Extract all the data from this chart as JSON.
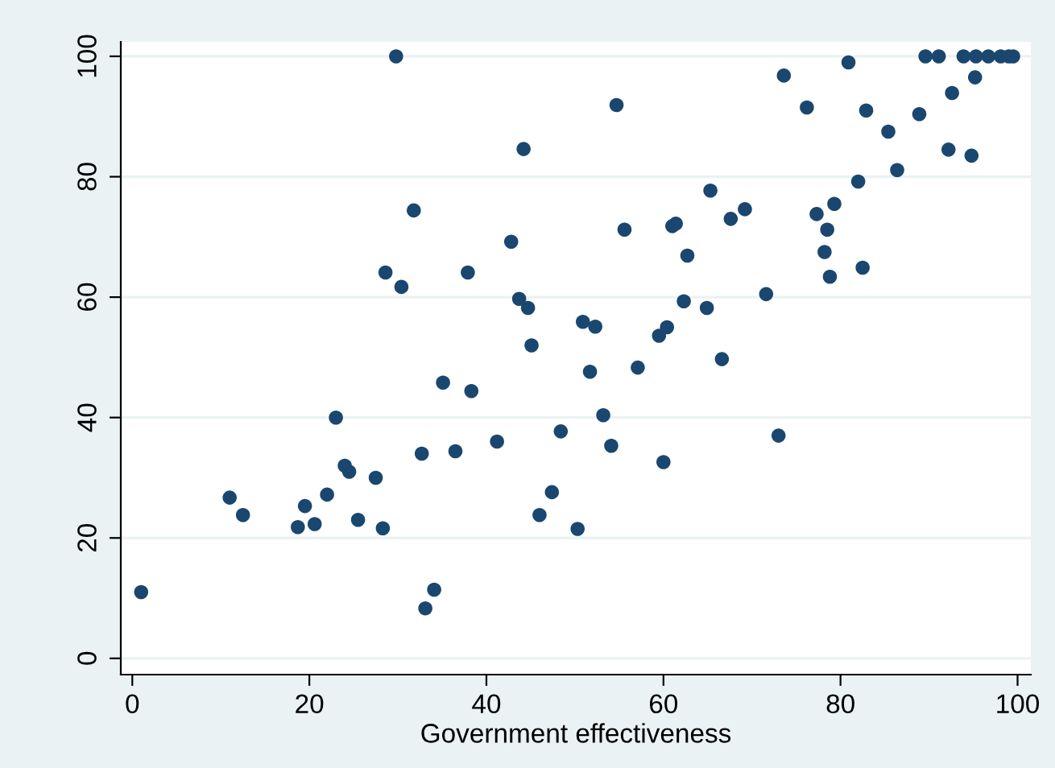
{
  "chart_data": {
    "type": "scatter",
    "xlabel": "Government effectiveness",
    "xlim": [
      -1.3,
      101.5
    ],
    "ylim": [
      -2.7,
      102.4
    ],
    "xticks": [
      0,
      20,
      40,
      60,
      80,
      100
    ],
    "yticks": [
      0,
      20,
      40,
      60,
      80,
      100
    ],
    "grid": "y",
    "marker": "circle",
    "series": [
      {
        "color": "#1a476f",
        "x": [
          1,
          11,
          12.5,
          18.7,
          19.5,
          20.6,
          22,
          23,
          24,
          24.5,
          25.5,
          27.5,
          28.3,
          28.6,
          29.8,
          30.4,
          31.8,
          32.7,
          33.1,
          34.1,
          35.1,
          36.5,
          37.9,
          38.3,
          41.2,
          42.8,
          43.7,
          44.2,
          44.7,
          45.1,
          46,
          47.4,
          48.4,
          50.3,
          50.9,
          51.7,
          52.3,
          53.2,
          54.1,
          54.7,
          55.6,
          57.1,
          59.5,
          60,
          60.4,
          61,
          61.4,
          62.3,
          62.7,
          64.9,
          65.3,
          66.6,
          67.6,
          69.2,
          71.6,
          73,
          73.6,
          76.2,
          77.3,
          78.2,
          78.5,
          78.8,
          79.3,
          80.9,
          82,
          82.5,
          82.9,
          85.4,
          86.4,
          88.9,
          89.6,
          91.1,
          92.2,
          92.6,
          93.9,
          94.8,
          95.3,
          95.2,
          96.7,
          98.1,
          99,
          99.5
        ],
        "values": [
          11,
          26.7,
          23.8,
          21.8,
          25.3,
          22.3,
          27.2,
          40,
          32,
          31,
          23,
          30,
          21.6,
          64.1,
          100,
          61.7,
          74.4,
          34,
          8.3,
          11.4,
          45.8,
          34.4,
          64.1,
          44.4,
          36,
          69.2,
          59.7,
          84.6,
          58.2,
          52,
          23.8,
          27.6,
          37.7,
          21.5,
          55.9,
          47.6,
          55.1,
          40.4,
          35.3,
          91.9,
          71.2,
          48.3,
          53.6,
          32.6,
          55,
          71.8,
          72.2,
          59.3,
          66.9,
          58.2,
          77.7,
          49.7,
          73,
          74.6,
          60.5,
          37,
          96.8,
          91.5,
          73.8,
          67.5,
          71.2,
          63.4,
          75.5,
          99,
          79.2,
          64.9,
          91,
          87.5,
          81.1,
          90.4,
          100,
          100,
          84.5,
          93.9,
          100,
          83.5,
          100,
          96.5,
          100,
          100,
          100,
          100
        ]
      }
    ]
  }
}
